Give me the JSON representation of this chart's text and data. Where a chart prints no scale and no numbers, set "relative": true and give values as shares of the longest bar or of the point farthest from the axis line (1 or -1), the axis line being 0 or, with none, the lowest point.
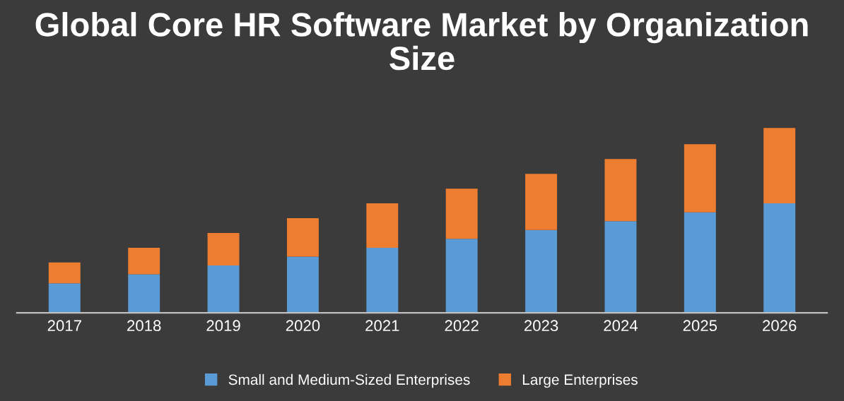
{
  "chart_data": {
    "type": "bar",
    "title": "Global Core HR Software Market by Organization Size",
    "categories": [
      "2017",
      "2018",
      "2019",
      "2020",
      "2021",
      "2022",
      "2023",
      "2024",
      "2025",
      "2026"
    ],
    "stacked": true,
    "relative": true,
    "legend": "bottom",
    "series": [
      {
        "name": "Small and Medium-Sized Enterprises",
        "color": "#5b9bd5",
        "values": [
          0.16,
          0.208,
          0.256,
          0.304,
          0.352,
          0.4,
          0.448,
          0.496,
          0.544,
          0.592
        ]
      },
      {
        "name": "Large Enterprises",
        "color": "#ed7d31",
        "values": [
          0.112,
          0.144,
          0.176,
          0.208,
          0.24,
          0.272,
          0.304,
          0.336,
          0.368,
          0.408
        ]
      }
    ]
  }
}
